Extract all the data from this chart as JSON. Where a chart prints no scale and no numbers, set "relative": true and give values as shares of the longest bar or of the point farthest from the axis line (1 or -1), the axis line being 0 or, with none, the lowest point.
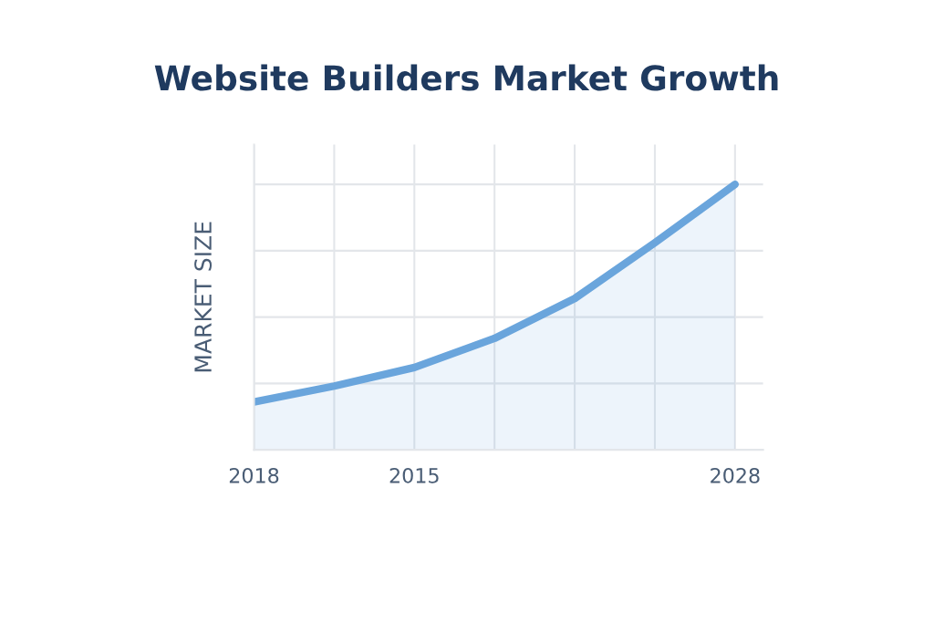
{
  "chart_data": {
    "type": "area",
    "title": "Website Builders Market Growth",
    "ylabel": "MARKET SIZE",
    "categories": [
      "2018",
      null,
      "2015",
      null,
      null,
      null,
      "2028"
    ],
    "series": [
      {
        "color": "#6aa5dc",
        "values": [
          0.18,
          0.24,
          0.31,
          0.42,
          0.57,
          0.78,
          1.0
        ]
      }
    ],
    "relative": true,
    "grid": true
  }
}
